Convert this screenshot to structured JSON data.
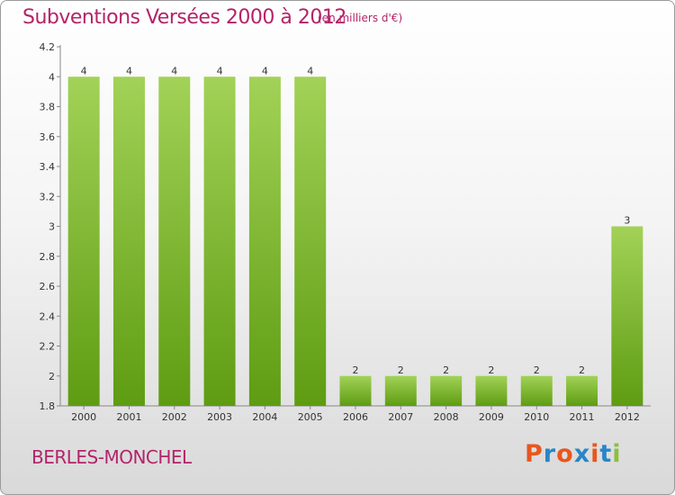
{
  "header": {
    "title": "Subventions Versées 2000 à 2012",
    "subtitle": "(en milliers d'€)"
  },
  "footer": {
    "place": "BERLES-MONCHEL",
    "logo": "Proxiti"
  },
  "colors": {
    "title": "#b3246a",
    "bar_top": "#a2d257",
    "bar_bottom": "#5e9c12",
    "logo_letters": [
      "#e8561f",
      "#2a86c7",
      "#e8561f",
      "#2a86c7",
      "#e8561f",
      "#2a86c7",
      "#8ac03a"
    ]
  },
  "chart_data": {
    "type": "bar",
    "categories": [
      "2000",
      "2001",
      "2002",
      "2003",
      "2004",
      "2005",
      "2006",
      "2007",
      "2008",
      "2009",
      "2010",
      "2011",
      "2012"
    ],
    "values": [
      4,
      4,
      4,
      4,
      4,
      4,
      2,
      2,
      2,
      2,
      2,
      2,
      3
    ],
    "data_labels": [
      "4",
      "4",
      "4",
      "4",
      "4",
      "4",
      "2",
      "2",
      "2",
      "2",
      "2",
      "2",
      "3"
    ],
    "yticks": [
      1.8,
      2,
      2.2,
      2.4,
      2.6,
      2.8,
      3,
      3.2,
      3.4,
      3.6,
      3.8,
      4,
      4.2
    ],
    "ytick_labels": [
      "1.8",
      "2",
      "2.2",
      "2.4",
      "2.6",
      "2.8",
      "3",
      "3.2",
      "3.4",
      "3.6",
      "3.8",
      "4",
      "4.2"
    ],
    "ylim": [
      1.8,
      4.2
    ],
    "grid": false,
    "legend": "none"
  }
}
